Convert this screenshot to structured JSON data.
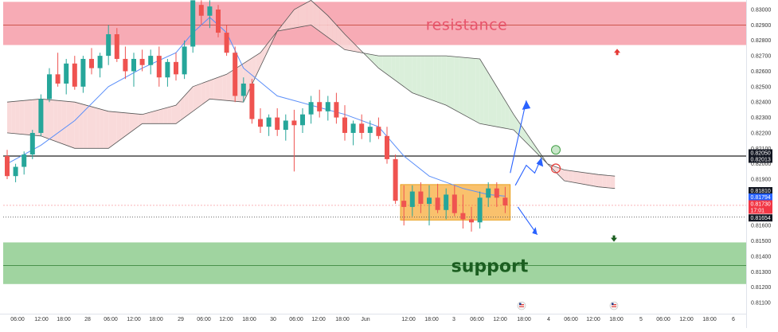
{
  "chart_data": {
    "type": "candlestick",
    "annotations": {
      "resistance_label": "resistance",
      "support_label": "support"
    },
    "zones": {
      "resistance": {
        "low": 0.8277,
        "high": 0.8305,
        "mid": 0.829,
        "color": "#f48b98"
      },
      "support": {
        "low": 0.8122,
        "high": 0.8149,
        "mid": 0.8134,
        "color": "#8fcd8f"
      },
      "consolidation_box": {
        "low": 0.81635,
        "high": 0.81865,
        "color": "#f7b249"
      }
    },
    "levels": {
      "key_line": 0.8205
    },
    "ylim": [
      0.8105,
      0.8306
    ],
    "yticks": [
      "0.83000",
      "0.82900",
      "0.82800",
      "0.82700",
      "0.82600",
      "0.82500",
      "0.82400",
      "0.82300",
      "0.82200",
      "0.82100",
      "0.82000",
      "0.81900",
      "0.81800",
      "0.81700",
      "0.81600",
      "0.81500",
      "0.81400",
      "0.81300",
      "0.81200",
      "0.81100"
    ],
    "yticks_numeric": [
      0.83,
      0.829,
      0.828,
      0.827,
      0.826,
      0.825,
      0.824,
      0.823,
      0.822,
      0.821,
      0.82,
      0.819,
      0.818,
      0.817,
      0.816,
      0.815,
      0.814,
      0.813,
      0.812,
      0.811
    ],
    "xticks": [
      "06:00",
      "12:00",
      "18:00",
      "28",
      "06:00",
      "12:00",
      "18:00",
      "29",
      "06:00",
      "12:00",
      "18:00",
      "30",
      "06:00",
      "12:00",
      "18:00",
      "Jun",
      "12:00",
      "18:00",
      "3",
      "06:00",
      "12:00",
      "18:00",
      "4",
      "06:00",
      "12:00",
      "18:00",
      "5",
      "06:00",
      "12:00",
      "18:00",
      "6"
    ],
    "price_tags": [
      {
        "value": "0.82050",
        "color": "#131722"
      },
      {
        "value": "0.82013",
        "color": "#131722"
      },
      {
        "value": "0.81810",
        "color": "#131722"
      },
      {
        "value": "0.81794",
        "color": "#2962ff"
      },
      {
        "value": "0.81730",
        "color": "#f23645"
      },
      {
        "value": "17:01",
        "color": "#f23645"
      },
      {
        "value": "0.81654",
        "color": "#131722"
      }
    ],
    "colors": {
      "up_candle": "#26a69a",
      "down_candle": "#ef5350",
      "moving_average": "#5b8ff9",
      "cloud_bearish": "#f8d3d3",
      "cloud_bullish": "#d3ecd3",
      "cloud_line": "#555555",
      "arrow": "#2962ff"
    },
    "candles": [
      {
        "t": 0,
        "o": 0.8205,
        "h": 0.8209,
        "l": 0.819,
        "c": 0.8192
      },
      {
        "t": 1,
        "o": 0.8192,
        "h": 0.82,
        "l": 0.8188,
        "c": 0.8198
      },
      {
        "t": 2,
        "o": 0.8198,
        "h": 0.8208,
        "l": 0.8193,
        "c": 0.8206
      },
      {
        "t": 3,
        "o": 0.8206,
        "h": 0.8222,
        "l": 0.8203,
        "c": 0.822
      },
      {
        "t": 4,
        "o": 0.822,
        "h": 0.8245,
        "l": 0.8218,
        "c": 0.8242
      },
      {
        "t": 5,
        "o": 0.8242,
        "h": 0.8262,
        "l": 0.824,
        "c": 0.8258
      },
      {
        "t": 6,
        "o": 0.8258,
        "h": 0.8272,
        "l": 0.825,
        "c": 0.8252
      },
      {
        "t": 7,
        "o": 0.8252,
        "h": 0.8268,
        "l": 0.8245,
        "c": 0.8265
      },
      {
        "t": 8,
        "o": 0.8265,
        "h": 0.827,
        "l": 0.8248,
        "c": 0.825
      },
      {
        "t": 9,
        "o": 0.825,
        "h": 0.827,
        "l": 0.8246,
        "c": 0.8268
      },
      {
        "t": 10,
        "o": 0.8268,
        "h": 0.8275,
        "l": 0.8258,
        "c": 0.8262
      },
      {
        "t": 11,
        "o": 0.8262,
        "h": 0.8272,
        "l": 0.8256,
        "c": 0.827
      },
      {
        "t": 12,
        "o": 0.827,
        "h": 0.829,
        "l": 0.8264,
        "c": 0.8284
      },
      {
        "t": 13,
        "o": 0.8284,
        "h": 0.8288,
        "l": 0.8266,
        "c": 0.8268
      },
      {
        "t": 14,
        "o": 0.8268,
        "h": 0.8276,
        "l": 0.8255,
        "c": 0.826
      },
      {
        "t": 15,
        "o": 0.826,
        "h": 0.8272,
        "l": 0.825,
        "c": 0.8268
      },
      {
        "t": 16,
        "o": 0.8268,
        "h": 0.8274,
        "l": 0.826,
        "c": 0.8264
      },
      {
        "t": 17,
        "o": 0.8264,
        "h": 0.8274,
        "l": 0.8258,
        "c": 0.827
      },
      {
        "t": 18,
        "o": 0.827,
        "h": 0.8276,
        "l": 0.825,
        "c": 0.8256
      },
      {
        "t": 19,
        "o": 0.8256,
        "h": 0.8268,
        "l": 0.825,
        "c": 0.8266
      },
      {
        "t": 20,
        "o": 0.8266,
        "h": 0.8272,
        "l": 0.8254,
        "c": 0.8258
      },
      {
        "t": 21,
        "o": 0.8258,
        "h": 0.828,
        "l": 0.8255,
        "c": 0.8276
      },
      {
        "t": 22,
        "o": 0.8276,
        "h": 0.8306,
        "l": 0.8272,
        "c": 0.8306
      },
      {
        "t": 23,
        "o": 0.8303,
        "h": 0.8306,
        "l": 0.829,
        "c": 0.8296
      },
      {
        "t": 24,
        "o": 0.8296,
        "h": 0.8306,
        "l": 0.8288,
        "c": 0.8302
      },
      {
        "t": 25,
        "o": 0.83,
        "h": 0.8303,
        "l": 0.8282,
        "c": 0.8285
      },
      {
        "t": 26,
        "o": 0.8285,
        "h": 0.829,
        "l": 0.827,
        "c": 0.8272
      },
      {
        "t": 27,
        "o": 0.8272,
        "h": 0.8276,
        "l": 0.824,
        "c": 0.8244
      },
      {
        "t": 28,
        "o": 0.8244,
        "h": 0.8256,
        "l": 0.824,
        "c": 0.8252
      },
      {
        "t": 29,
        "o": 0.8252,
        "h": 0.8255,
        "l": 0.8226,
        "c": 0.8229
      },
      {
        "t": 30,
        "o": 0.8229,
        "h": 0.8236,
        "l": 0.822,
        "c": 0.8224
      },
      {
        "t": 31,
        "o": 0.8224,
        "h": 0.8232,
        "l": 0.8218,
        "c": 0.823
      },
      {
        "t": 32,
        "o": 0.823,
        "h": 0.8236,
        "l": 0.8218,
        "c": 0.8222
      },
      {
        "t": 33,
        "o": 0.8222,
        "h": 0.8232,
        "l": 0.8215,
        "c": 0.8228
      },
      {
        "t": 34,
        "o": 0.8228,
        "h": 0.8235,
        "l": 0.8195,
        "c": 0.8225
      },
      {
        "t": 35,
        "o": 0.8225,
        "h": 0.8236,
        "l": 0.822,
        "c": 0.8232
      },
      {
        "t": 36,
        "o": 0.8232,
        "h": 0.8244,
        "l": 0.8226,
        "c": 0.824
      },
      {
        "t": 37,
        "o": 0.824,
        "h": 0.8248,
        "l": 0.823,
        "c": 0.8234
      },
      {
        "t": 38,
        "o": 0.8234,
        "h": 0.8244,
        "l": 0.8228,
        "c": 0.824
      },
      {
        "t": 39,
        "o": 0.824,
        "h": 0.8246,
        "l": 0.8226,
        "c": 0.823
      },
      {
        "t": 40,
        "o": 0.823,
        "h": 0.8238,
        "l": 0.8215,
        "c": 0.822
      },
      {
        "t": 41,
        "o": 0.822,
        "h": 0.8228,
        "l": 0.8212,
        "c": 0.8226
      },
      {
        "t": 42,
        "o": 0.8226,
        "h": 0.8232,
        "l": 0.8216,
        "c": 0.822
      },
      {
        "t": 43,
        "o": 0.822,
        "h": 0.8228,
        "l": 0.8214,
        "c": 0.8224
      },
      {
        "t": 44,
        "o": 0.8224,
        "h": 0.823,
        "l": 0.8216,
        "c": 0.8218
      },
      {
        "t": 45,
        "o": 0.8218,
        "h": 0.8224,
        "l": 0.82,
        "c": 0.8203
      },
      {
        "t": 46,
        "o": 0.8203,
        "h": 0.8206,
        "l": 0.8174,
        "c": 0.8176
      },
      {
        "t": 47,
        "o": 0.8176,
        "h": 0.8186,
        "l": 0.816,
        "c": 0.8172
      },
      {
        "t": 48,
        "o": 0.8172,
        "h": 0.8186,
        "l": 0.8166,
        "c": 0.8182
      },
      {
        "t": 49,
        "o": 0.8182,
        "h": 0.8188,
        "l": 0.8168,
        "c": 0.8174
      },
      {
        "t": 50,
        "o": 0.8174,
        "h": 0.8186,
        "l": 0.816,
        "c": 0.8178
      },
      {
        "t": 51,
        "o": 0.8178,
        "h": 0.8187,
        "l": 0.8168,
        "c": 0.817
      },
      {
        "t": 52,
        "o": 0.817,
        "h": 0.8184,
        "l": 0.8164,
        "c": 0.818
      },
      {
        "t": 53,
        "o": 0.818,
        "h": 0.8186,
        "l": 0.8166,
        "c": 0.8168
      },
      {
        "t": 54,
        "o": 0.8168,
        "h": 0.818,
        "l": 0.8158,
        "c": 0.8164
      },
      {
        "t": 55,
        "o": 0.8164,
        "h": 0.8172,
        "l": 0.8156,
        "c": 0.8162
      },
      {
        "t": 56,
        "o": 0.8162,
        "h": 0.8182,
        "l": 0.8158,
        "c": 0.8178
      },
      {
        "t": 57,
        "o": 0.8178,
        "h": 0.8188,
        "l": 0.8172,
        "c": 0.8184
      },
      {
        "t": 58,
        "o": 0.8184,
        "h": 0.8188,
        "l": 0.8172,
        "c": 0.8178
      },
      {
        "t": 59,
        "o": 0.8178,
        "h": 0.8185,
        "l": 0.8168,
        "c": 0.8173
      }
    ],
    "moving_average": [
      {
        "t": 0,
        "v": 0.82
      },
      {
        "t": 4,
        "v": 0.8212
      },
      {
        "t": 8,
        "v": 0.8228
      },
      {
        "t": 12,
        "v": 0.825
      },
      {
        "t": 16,
        "v": 0.8262
      },
      {
        "t": 20,
        "v": 0.8272
      },
      {
        "t": 22,
        "v": 0.8285
      },
      {
        "t": 24,
        "v": 0.8295
      },
      {
        "t": 26,
        "v": 0.8285
      },
      {
        "t": 28,
        "v": 0.8262
      },
      {
        "t": 32,
        "v": 0.8244
      },
      {
        "t": 36,
        "v": 0.8238
      },
      {
        "t": 40,
        "v": 0.8232
      },
      {
        "t": 44,
        "v": 0.8224
      },
      {
        "t": 47,
        "v": 0.8205
      },
      {
        "t": 50,
        "v": 0.8192
      },
      {
        "t": 54,
        "v": 0.8184
      },
      {
        "t": 57,
        "v": 0.818
      },
      {
        "t": 59,
        "v": 0.8179
      }
    ],
    "cloud": {
      "span_a": [
        {
          "t": 0,
          "v": 0.824
        },
        {
          "t": 4,
          "v": 0.8242
        },
        {
          "t": 8,
          "v": 0.824
        },
        {
          "t": 12,
          "v": 0.8234
        },
        {
          "t": 16,
          "v": 0.8232
        },
        {
          "t": 20,
          "v": 0.8238
        },
        {
          "t": 22,
          "v": 0.825
        },
        {
          "t": 26,
          "v": 0.8258
        },
        {
          "t": 30,
          "v": 0.8272
        },
        {
          "t": 34,
          "v": 0.83
        },
        {
          "t": 36,
          "v": 0.8306
        },
        {
          "t": 38,
          "v": 0.8296
        },
        {
          "t": 40,
          "v": 0.8284
        },
        {
          "t": 44,
          "v": 0.8262
        },
        {
          "t": 48,
          "v": 0.8246
        },
        {
          "t": 52,
          "v": 0.8238
        },
        {
          "t": 56,
          "v": 0.8226
        },
        {
          "t": 60,
          "v": 0.8222
        },
        {
          "t": 64,
          "v": 0.82
        },
        {
          "t": 66,
          "v": 0.8196
        },
        {
          "t": 70,
          "v": 0.8193
        },
        {
          "t": 72,
          "v": 0.8192
        }
      ],
      "span_b": [
        {
          "t": 0,
          "v": 0.822
        },
        {
          "t": 4,
          "v": 0.8218
        },
        {
          "t": 8,
          "v": 0.821
        },
        {
          "t": 12,
          "v": 0.821
        },
        {
          "t": 16,
          "v": 0.8226
        },
        {
          "t": 20,
          "v": 0.8226
        },
        {
          "t": 24,
          "v": 0.8242
        },
        {
          "t": 28,
          "v": 0.824
        },
        {
          "t": 32,
          "v": 0.8286
        },
        {
          "t": 36,
          "v": 0.829
        },
        {
          "t": 40,
          "v": 0.8274
        },
        {
          "t": 44,
          "v": 0.827
        },
        {
          "t": 48,
          "v": 0.827
        },
        {
          "t": 52,
          "v": 0.827
        },
        {
          "t": 56,
          "v": 0.8268
        },
        {
          "t": 60,
          "v": 0.8232
        },
        {
          "t": 64,
          "v": 0.82
        },
        {
          "t": 66,
          "v": 0.8189
        },
        {
          "t": 70,
          "v": 0.8185
        },
        {
          "t": 72,
          "v": 0.8184
        }
      ]
    },
    "markers": {
      "green_circle": {
        "t": 65,
        "v": 0.8209
      },
      "red_circle": {
        "t": 65,
        "v": 0.8197
      }
    }
  }
}
